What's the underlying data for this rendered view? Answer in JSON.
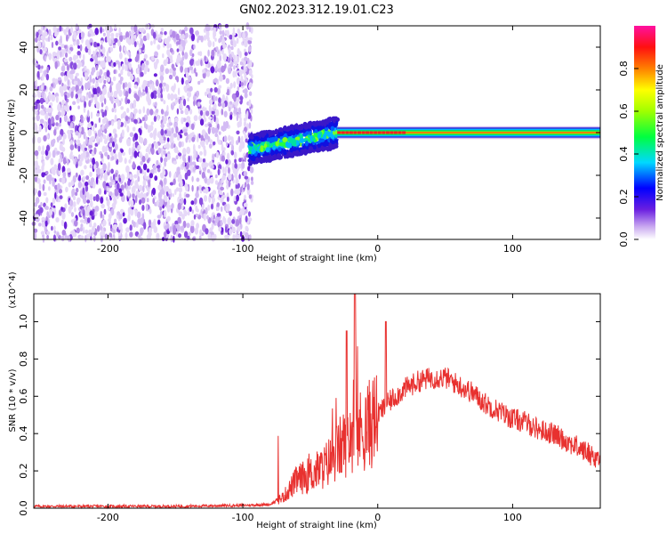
{
  "title": "GN02.2023.312.19.01.C23",
  "chart_data": [
    {
      "type": "heatmap",
      "xlabel": "Height of straight line (km)",
      "ylabel": "Frequency (Hz)",
      "xlim": [
        -255,
        165
      ],
      "ylim": [
        -50,
        50
      ],
      "x_ticks": [
        -200,
        -100,
        0,
        100
      ],
      "y_ticks": [
        -40,
        -20,
        0,
        20,
        40
      ],
      "colorbar": {
        "label": "Normalized spectral amplitude",
        "range": [
          0,
          1
        ],
        "ticks": [
          "0.0",
          "0.2",
          "0.4",
          "0.6",
          "0.8"
        ]
      },
      "regions": [
        {
          "x": [
            -255,
            -93
          ],
          "freq": [
            -50,
            50
          ],
          "amplitude": "0.0-0.15",
          "description": "scattered noise"
        },
        {
          "x": [
            -95,
            -30
          ],
          "freq": [
            -14,
            6
          ],
          "amplitude": "0.2-0.5",
          "description": "signal band rising from about -8 Hz to 0 Hz"
        },
        {
          "x": [
            -30,
            165
          ],
          "freq": [
            -3,
            3
          ],
          "amplitude": "0.5-1.0",
          "description": "narrow line at 0 Hz"
        }
      ]
    },
    {
      "type": "line",
      "xlabel": "Height of straight line (km)",
      "ylabel": "SNR (10 * v/v)",
      "y_multiplier": "(x10^4)",
      "xlim": [
        -255,
        165
      ],
      "ylim": [
        0,
        1.15
      ],
      "x_ticks": [
        -200,
        -100,
        0,
        100
      ],
      "y_ticks": [
        "0.0",
        "0.2",
        "0.4",
        "0.6",
        "0.8",
        "1.0"
      ],
      "color": "#e8312f",
      "series": [
        {
          "x": [
            -255,
            -200,
            -150,
            -100,
            -80,
            -70,
            -60,
            -50,
            -40,
            -30,
            -20,
            -10,
            0,
            10,
            20,
            30,
            40,
            50,
            60,
            70,
            80,
            90,
            100,
            110,
            120,
            130,
            140,
            150,
            160,
            165
          ],
          "y": [
            0.01,
            0.01,
            0.01,
            0.015,
            0.02,
            0.06,
            0.15,
            0.18,
            0.22,
            0.3,
            0.4,
            0.42,
            0.5,
            0.58,
            0.64,
            0.68,
            0.7,
            0.7,
            0.66,
            0.62,
            0.56,
            0.52,
            0.48,
            0.46,
            0.42,
            0.4,
            0.36,
            0.32,
            0.28,
            0.26
          ]
        }
      ]
    }
  ]
}
